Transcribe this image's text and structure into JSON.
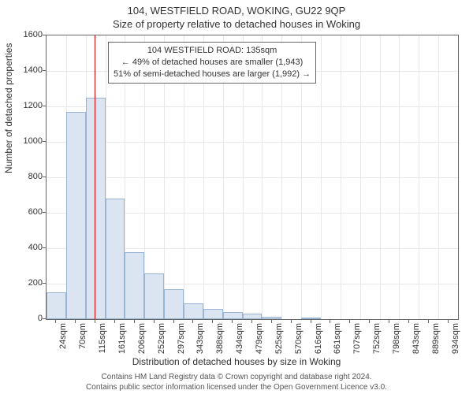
{
  "title_main": "104, WESTFIELD ROAD, WOKING, GU22 9QP",
  "title_sub": "Size of property relative to detached houses in Woking",
  "chart": {
    "type": "histogram",
    "ylabel": "Number of detached properties",
    "xlabel": "Distribution of detached houses by size in Woking",
    "ylim": [
      0,
      1600
    ],
    "ytick_step": 200,
    "x_categories": [
      "24sqm",
      "70sqm",
      "115sqm",
      "161sqm",
      "206sqm",
      "252sqm",
      "297sqm",
      "343sqm",
      "388sqm",
      "434sqm",
      "479sqm",
      "525sqm",
      "570sqm",
      "616sqm",
      "661sqm",
      "707sqm",
      "752sqm",
      "798sqm",
      "843sqm",
      "889sqm",
      "934sqm"
    ],
    "values": [
      150,
      1170,
      1250,
      680,
      380,
      260,
      170,
      90,
      60,
      40,
      30,
      15,
      0,
      10,
      0,
      0,
      0,
      0,
      0,
      0,
      0
    ],
    "bar_fill": "#dbe5f2",
    "bar_border": "#99b3d4",
    "grid_color": "#e8e8e8",
    "axis_color": "#666666",
    "background_color": "#ffffff",
    "label_fontsize": 12,
    "tick_fontsize": 11,
    "marker": {
      "position_category_index": 2.45,
      "color": "#cc0000",
      "annotation_lines": [
        "104 WESTFIELD ROAD: 135sqm",
        "← 49% of detached houses are smaller (1,943)",
        "51% of semi-detached houses are larger (1,992) →"
      ]
    }
  },
  "footer": {
    "line1": "Contains HM Land Registry data © Crown copyright and database right 2024.",
    "line2": "Contains public sector information licensed under the Open Government Licence v3.0."
  }
}
